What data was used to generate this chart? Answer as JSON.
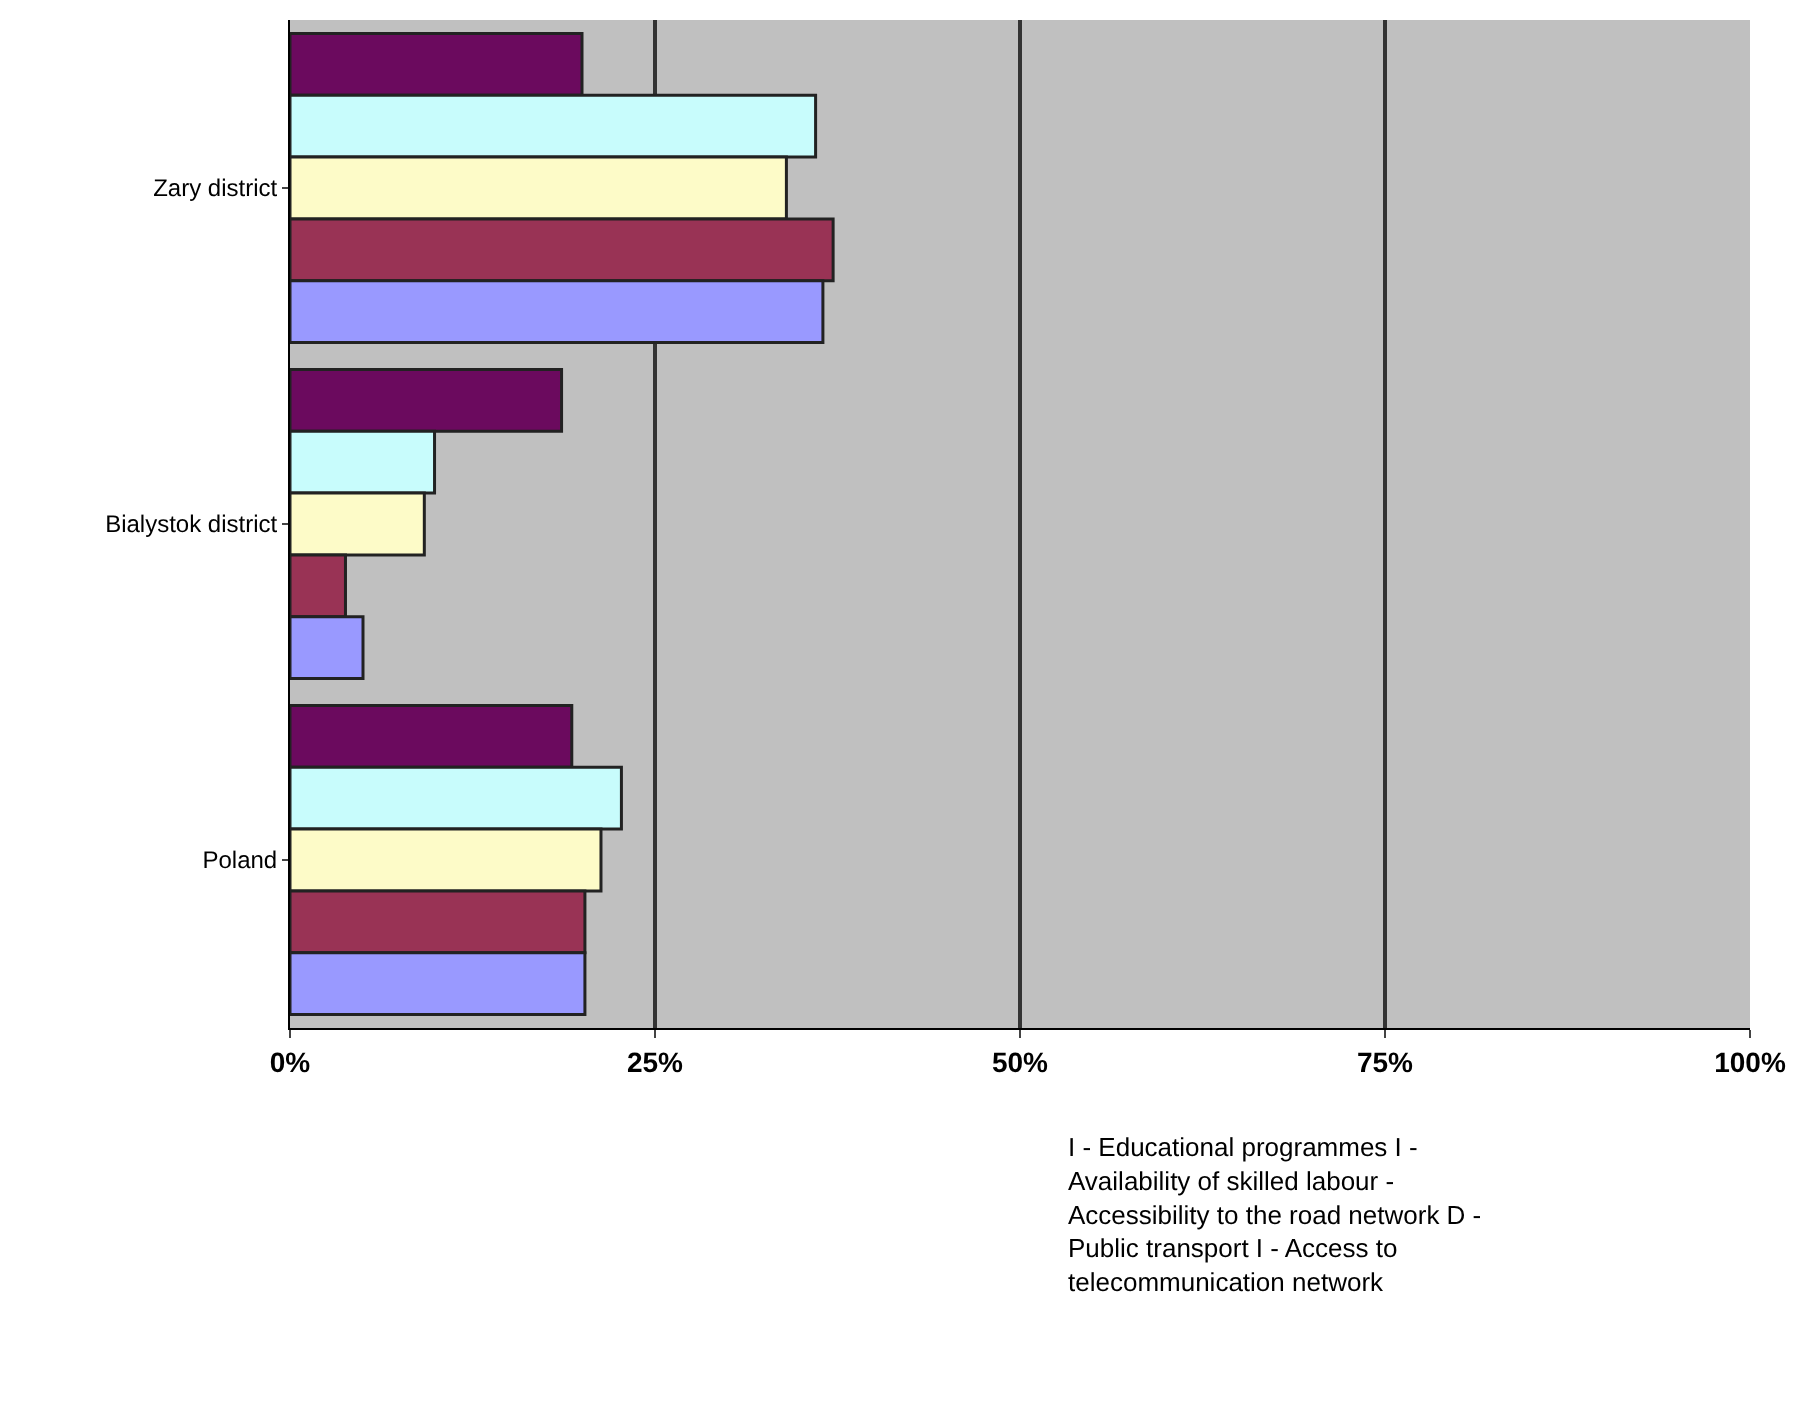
{
  "chart_data": {
    "type": "bar",
    "orientation": "horizontal",
    "categories": [
      "Zary district",
      "Bialystok district",
      "Poland"
    ],
    "series": [
      {
        "color": "#6b0a5e",
        "values": [
          20,
          18.6,
          19.3
        ]
      },
      {
        "color": "#c8fcfc",
        "values": [
          36,
          9.9,
          22.7
        ]
      },
      {
        "color": "#fdfbc8",
        "values": [
          34,
          9.2,
          21.3
        ]
      },
      {
        "color": "#993355",
        "values": [
          37.2,
          3.8,
          20.2
        ]
      },
      {
        "color": "#9999ff",
        "values": [
          36.5,
          5,
          20.2
        ]
      }
    ],
    "xlim": [
      0,
      100
    ],
    "xticks": [
      {
        "value": 0,
        "label": "0%"
      },
      {
        "value": 25,
        "label": "25%"
      },
      {
        "value": 50,
        "label": "50%"
      },
      {
        "value": 75,
        "label": "75%"
      },
      {
        "value": 100,
        "label": "100%"
      }
    ],
    "grid": "x",
    "annotations": [
      "I - Educational programmes I - Availability of skilled labour - Accessibility to the road network D - Public transport I - Access to telecommunication network"
    ]
  }
}
